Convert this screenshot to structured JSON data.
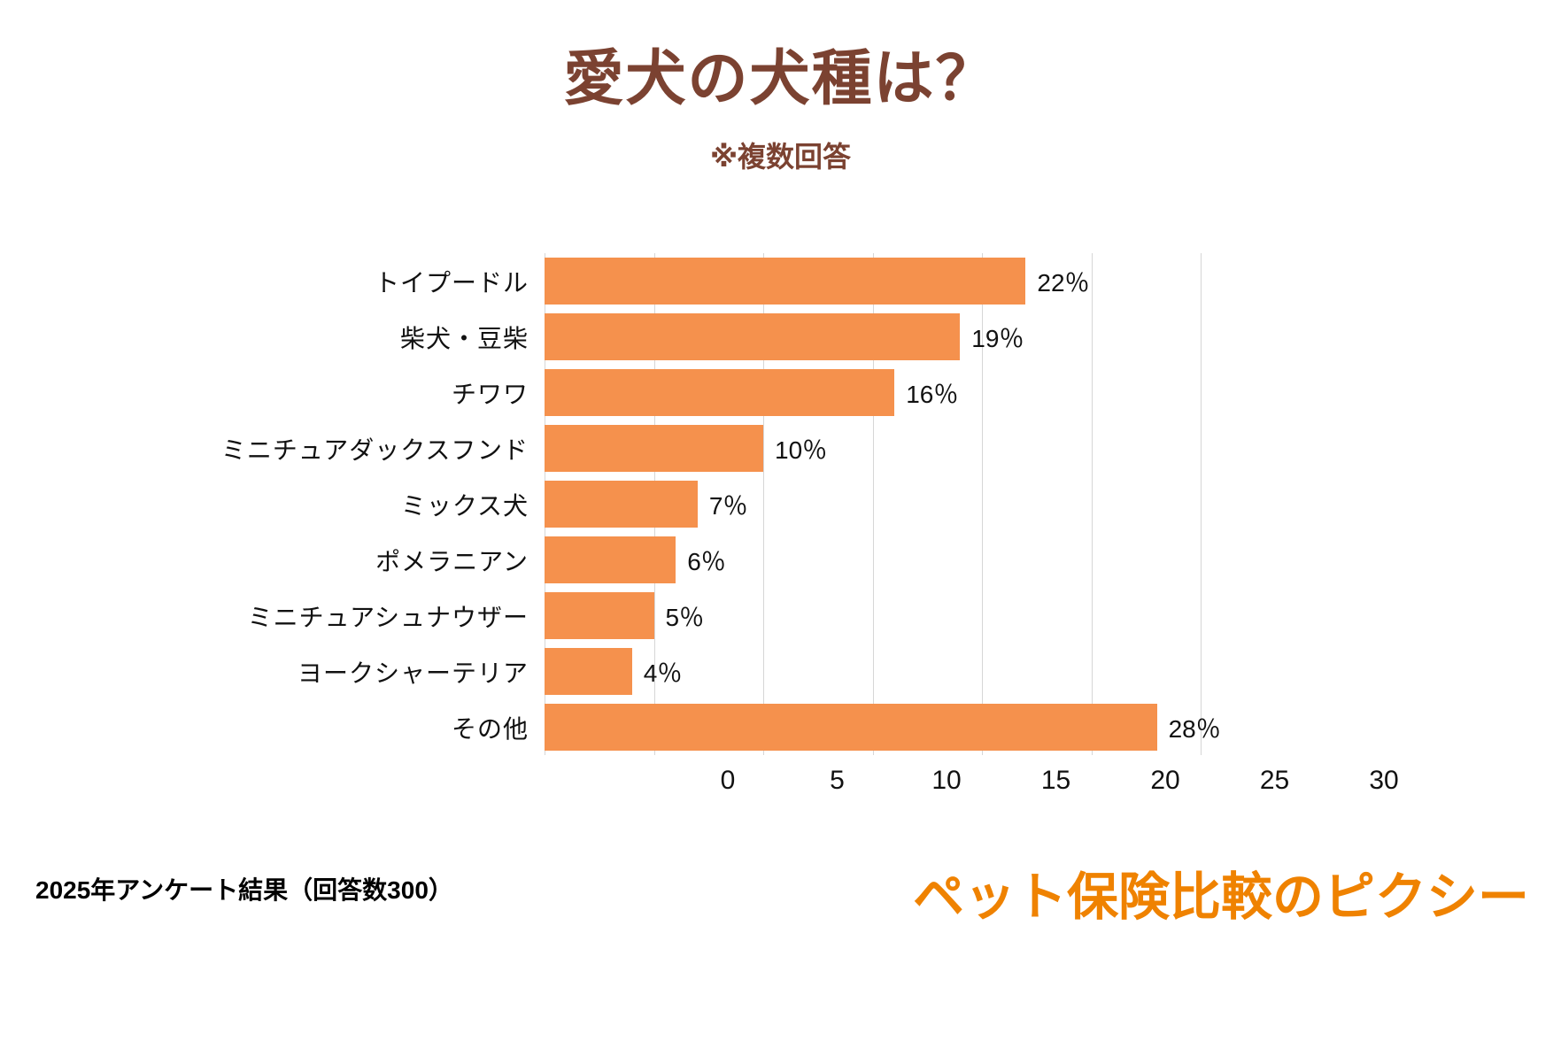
{
  "title": "愛犬の犬種は？",
  "subtitle": "※複数回答",
  "footer": {
    "note": "2025年アンケート結果（回答数300）",
    "logo": "ペット保険比較のピクシー"
  },
  "colors": {
    "bar": "#F5914D",
    "title": "#7B4231",
    "logo": "#EF8200",
    "gridline": "#D6D6D6",
    "background": "#FFFFFF",
    "text": "#111111"
  },
  "chart_data": {
    "type": "bar",
    "orientation": "horizontal",
    "title": "愛犬の犬種は？",
    "subtitle": "※複数回答",
    "categories": [
      "トイプードル",
      "柴犬・豆柴",
      "チワワ",
      "ミニチュアダックスフンド",
      "ミックス犬",
      "ポメラニアン",
      "ミニチュアシュナウザー",
      "ヨークシャーテリア",
      "その他"
    ],
    "values": [
      22,
      19,
      16,
      10,
      7,
      6,
      5,
      4,
      28
    ],
    "value_labels": [
      "22％",
      "19％",
      "16％",
      "10％",
      "7％",
      "6％",
      "5％",
      "4％",
      "28％"
    ],
    "xlabel": "",
    "ylabel": "",
    "xlim": [
      0,
      30
    ],
    "xticks": [
      0,
      5,
      10,
      15,
      20,
      25,
      30
    ],
    "grid": true,
    "legend": false
  }
}
